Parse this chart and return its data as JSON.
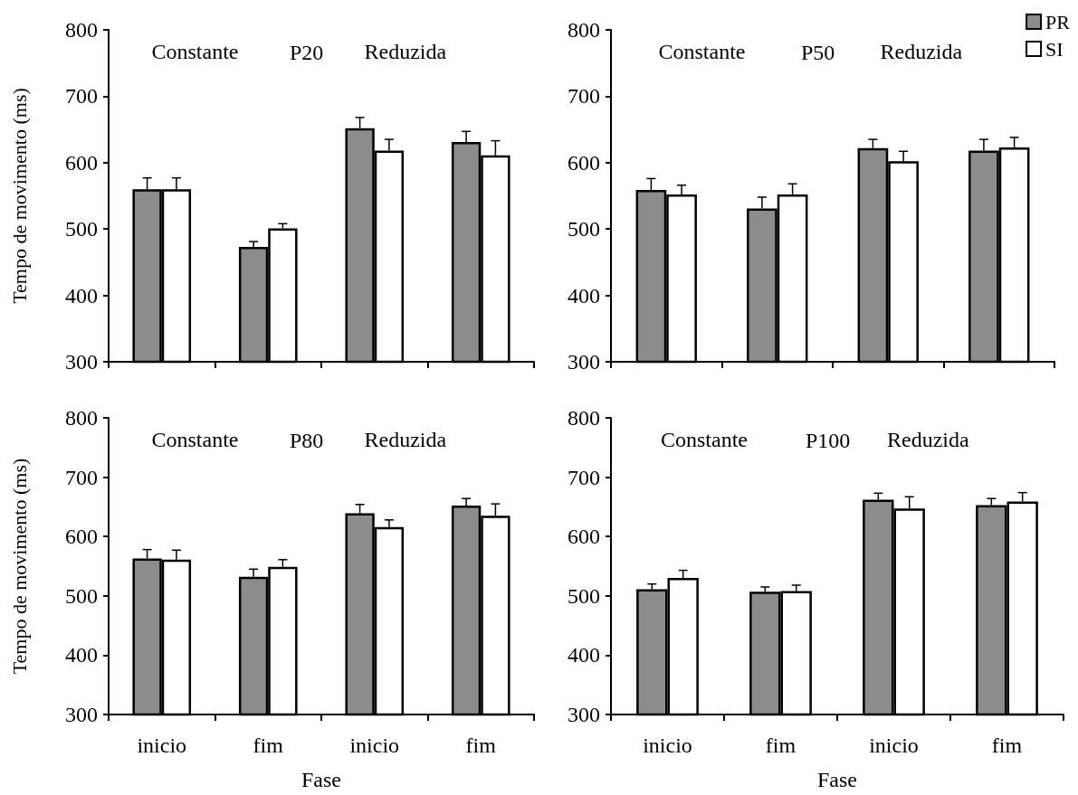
{
  "chart_data": [
    {
      "type": "bar",
      "title": "P20",
      "annotations": [
        "Constante",
        "Reduzida"
      ],
      "ylabel": "Tempo de movimento (ms)",
      "categories": [
        null,
        null,
        null,
        null
      ],
      "ylim": [
        300,
        800
      ],
      "yticks": [
        300,
        400,
        500,
        600,
        700,
        800
      ],
      "tick_labels": "y",
      "series": [
        {
          "color": "#8c8c8c",
          "values": [
            560,
            473,
            652,
            631
          ],
          "errors": [
            [
              560,
              577
            ],
            [
              473,
              481
            ],
            [
              652,
              668
            ],
            [
              631,
              647
            ]
          ]
        },
        {
          "color": "#ffffff",
          "values": [
            560,
            501,
            618,
            611
          ],
          "errors": [
            [
              560,
              577
            ],
            [
              501,
              508
            ],
            [
              618,
              635
            ],
            [
              611,
              633
            ]
          ]
        }
      ]
    },
    {
      "type": "bar",
      "title": "P50",
      "annotations": [
        "Constante",
        "Reduzida"
      ],
      "categories": [
        null,
        null,
        null,
        null
      ],
      "ylim": [
        300,
        800
      ],
      "yticks": [
        300,
        400,
        500,
        600,
        700,
        800
      ],
      "tick_labels": "y",
      "legend": "top right",
      "series": [
        {
          "name": "PR",
          "color": "#8c8c8c",
          "values": [
            559,
            531,
            622,
            618
          ],
          "errors": [
            [
              559,
              576
            ],
            [
              531,
              548
            ],
            [
              622,
              635
            ],
            [
              618,
              635
            ]
          ]
        },
        {
          "name": "SI",
          "color": "#ffffff",
          "values": [
            552,
            552,
            602,
            623
          ],
          "errors": [
            [
              552,
              566
            ],
            [
              552,
              568
            ],
            [
              602,
              617
            ],
            [
              623,
              638
            ]
          ]
        }
      ]
    },
    {
      "type": "bar",
      "title": "P80",
      "annotations": [
        "Constante",
        "Reduzida"
      ],
      "ylabel": "Tempo de movimento (ms)",
      "xlabel": "Fase",
      "categories": [
        "inicio",
        "fim",
        "inicio",
        "fim"
      ],
      "ylim": [
        300,
        800
      ],
      "yticks": [
        300,
        400,
        500,
        600,
        700,
        800
      ],
      "series": [
        {
          "color": "#8c8c8c",
          "values": [
            563,
            532,
            639,
            652
          ],
          "errors": [
            [
              563,
              578
            ],
            [
              532,
              545
            ],
            [
              639,
              654
            ],
            [
              652,
              664
            ]
          ]
        },
        {
          "color": "#ffffff",
          "values": [
            561,
            549,
            616,
            635
          ],
          "errors": [
            [
              561,
              577
            ],
            [
              549,
              561
            ],
            [
              616,
              628
            ],
            [
              635,
              655
            ]
          ]
        }
      ]
    },
    {
      "type": "bar",
      "title": "P100",
      "annotations": [
        "Constante",
        "Reduzida"
      ],
      "xlabel": "Fase",
      "categories": [
        "inicio",
        "fim",
        "inicio",
        "fim"
      ],
      "ylim": [
        300,
        800
      ],
      "yticks": [
        300,
        400,
        500,
        600,
        700,
        800
      ],
      "series": [
        {
          "color": "#8c8c8c",
          "values": [
            511,
            507,
            662,
            653
          ],
          "errors": [
            [
              511,
              520
            ],
            [
              507,
              515
            ],
            [
              662,
              673
            ],
            [
              653,
              664
            ]
          ]
        },
        {
          "color": "#ffffff",
          "values": [
            530,
            508,
            647,
            659
          ],
          "errors": [
            [
              530,
              543
            ],
            [
              508,
              518
            ],
            [
              647,
              667
            ],
            [
              659,
              674
            ]
          ]
        }
      ]
    }
  ]
}
